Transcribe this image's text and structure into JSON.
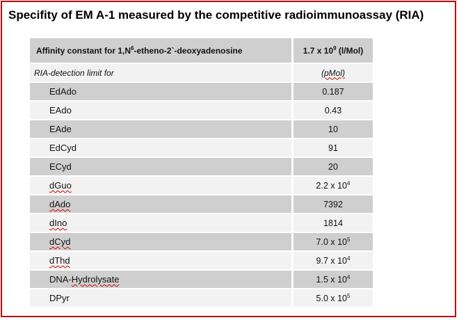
{
  "title": "Specifity of EM A-1 measured by the competitive radioimmunoassay (RIA)",
  "header": {
    "label_pre": "Affinity constant  for 1,N",
    "label_sup": "6",
    "label_post": "-etheno-2`-deoxyadenosine",
    "value_pre": "1.7 x 10",
    "value_sup": "9",
    "value_post": " (l/Mol)"
  },
  "subheader": {
    "label": "RIA-detection limit for",
    "unit": "(pMol)"
  },
  "rows": [
    {
      "name": "EdAdo",
      "mantissa": "0.187",
      "exp": ""
    },
    {
      "name": "EAdo",
      "mantissa": "0.43",
      "exp": ""
    },
    {
      "name": "EAde",
      "mantissa": "10",
      "exp": ""
    },
    {
      "name": "EdCyd",
      "mantissa": "91",
      "exp": ""
    },
    {
      "name": "ECyd",
      "mantissa": "20",
      "exp": ""
    },
    {
      "name": "dGuo",
      "mantissa": "2.2 x 10",
      "exp": "4"
    },
    {
      "name": "dAdo",
      "mantissa": "7392",
      "exp": ""
    },
    {
      "name": "dIno",
      "mantissa": "1814",
      "exp": ""
    },
    {
      "name": "dCyd",
      "mantissa": "7.0 x 10",
      "exp": "5"
    },
    {
      "name": "dThd",
      "mantissa": "9.7 x 10",
      "exp": "4"
    },
    {
      "name": "DNA-Hydrolysate",
      "mantissa": "1.5 x 10",
      "exp": "4"
    },
    {
      "name": "DPyr",
      "mantissa": "5.0 x 10",
      "exp": "5"
    }
  ],
  "colors": {
    "frame": "#c00000",
    "row_dark": "#cfcfcf",
    "row_light": "#f2f2f2",
    "spellcheck": "#d00000"
  }
}
